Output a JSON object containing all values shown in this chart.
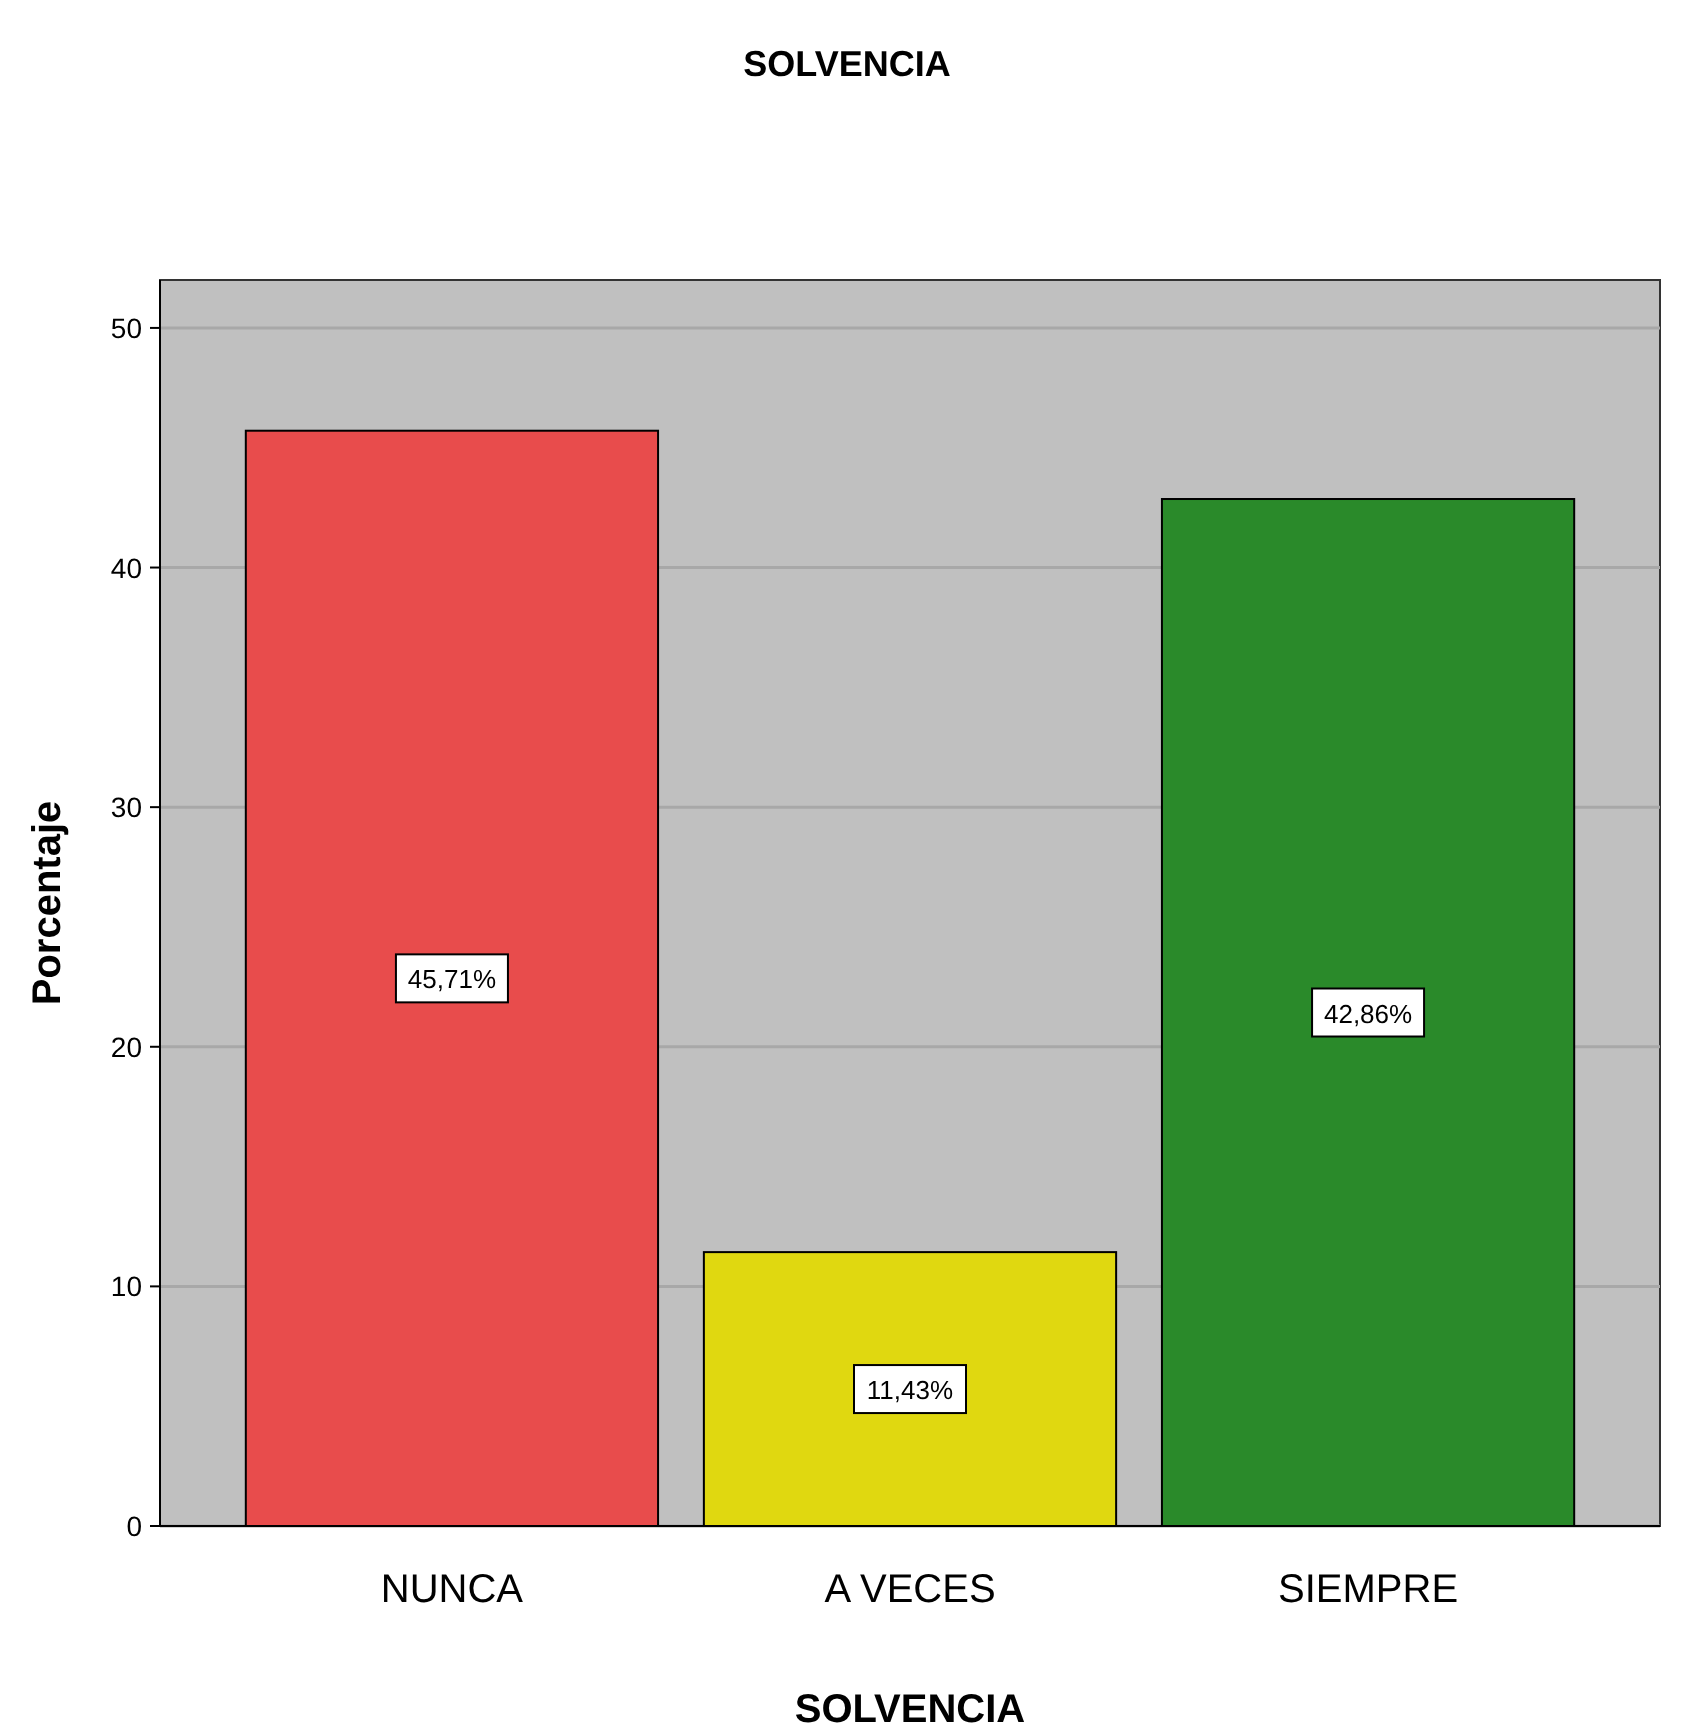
{
  "chart_data": {
    "type": "bar",
    "title": "SOLVENCIA",
    "xlabel": "SOLVENCIA",
    "ylabel": "Porcentaje",
    "categories": [
      "NUNCA",
      "A VECES",
      "SIEMPRE"
    ],
    "values": [
      45.71,
      11.43,
      42.86
    ],
    "colors": [
      "#e84c4c",
      "#e0d810",
      "#2a8a2a"
    ],
    "value_labels": [
      "45,71%",
      "11,43%",
      "42,86%"
    ],
    "ylim": [
      0,
      52
    ],
    "yticks": [
      0,
      10,
      20,
      30,
      40,
      50
    ],
    "grid": "y"
  }
}
